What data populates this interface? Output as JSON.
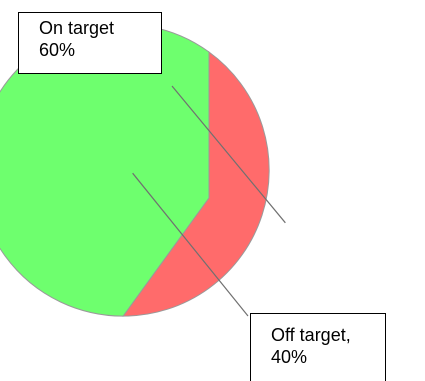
{
  "chart_data": {
    "type": "pie",
    "title": "",
    "slices": [
      {
        "label": "On target",
        "value": 60,
        "value_label": "60%",
        "color": "#6eff6e"
      },
      {
        "label": "Off target,",
        "value": 40,
        "value_label": "40%",
        "color": "#ff6b6b"
      }
    ],
    "start_angle_deg": 90,
    "direction": "counterclockwise",
    "legend": "none",
    "data_labels": "callouts"
  }
}
